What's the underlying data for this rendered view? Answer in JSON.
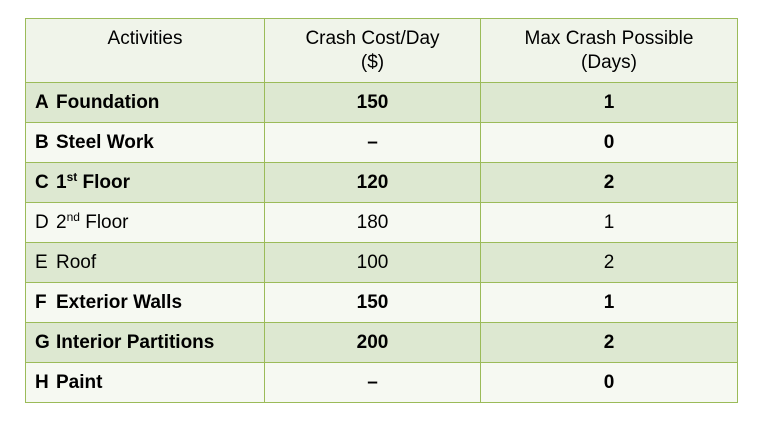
{
  "table": {
    "headers": {
      "activities": "Activities",
      "cost_line1": "Crash Cost/Day",
      "cost_line2": "($)",
      "max_line1": "Max Crash Possible",
      "max_line2": "(Days)"
    },
    "rows": [
      {
        "id": "A",
        "name": "Foundation",
        "name_sup": "",
        "name_rest": "",
        "cost": "150",
        "max": "1",
        "bold": true
      },
      {
        "id": "B",
        "name": "Steel Work",
        "name_sup": "",
        "name_rest": "",
        "cost": "–",
        "max": "0",
        "bold": true
      },
      {
        "id": "C",
        "name": "1",
        "name_sup": "st",
        "name_rest": " Floor",
        "cost": "120",
        "max": "2",
        "bold": true
      },
      {
        "id": "D",
        "name": "2",
        "name_sup": "nd",
        "name_rest": " Floor",
        "cost": "180",
        "max": "1",
        "bold": false
      },
      {
        "id": "E",
        "name": "Roof",
        "name_sup": "",
        "name_rest": "",
        "cost": "100",
        "max": "2",
        "bold": false
      },
      {
        "id": "F",
        "name": "Exterior Walls",
        "name_sup": "",
        "name_rest": "",
        "cost": "150",
        "max": "1",
        "bold": true
      },
      {
        "id": "G",
        "name": "Interior Partitions",
        "name_sup": "",
        "name_rest": "",
        "cost": "200",
        "max": "2",
        "bold": true
      },
      {
        "id": "H",
        "name": "Paint",
        "name_sup": "",
        "name_rest": "",
        "cost": "–",
        "max": "0",
        "bold": true
      }
    ]
  },
  "colors": {
    "border": "#9bbb59",
    "shaded_row": "#dde8d1",
    "plain_row": "#f6f9f2",
    "header": "#f0f4ea"
  }
}
